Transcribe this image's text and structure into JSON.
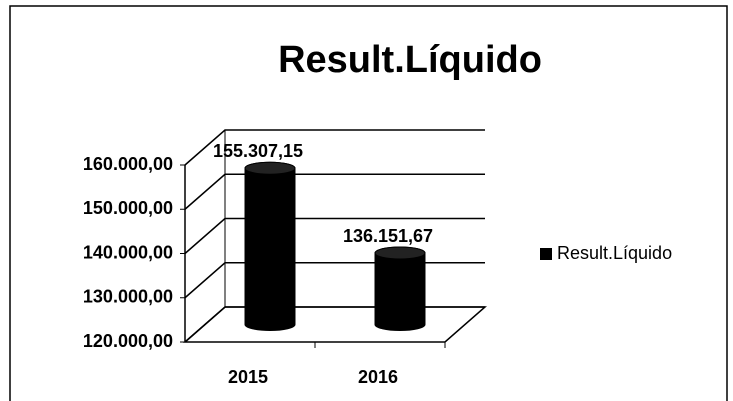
{
  "chart_data": {
    "type": "bar",
    "title": "Result.Líquido",
    "categories": [
      "2015",
      "2016"
    ],
    "series": [
      {
        "name": "Result.Líquido",
        "color": "#000000",
        "values": [
          155307.15,
          136151.67
        ],
        "value_labels": [
          "155.307,15",
          "136.151,67"
        ]
      }
    ],
    "ylim": [
      120000,
      160000
    ],
    "yticks": [
      {
        "value": 120000,
        "label": "120.000,00"
      },
      {
        "value": 130000,
        "label": "130.000,00"
      },
      {
        "value": 140000,
        "label": "140.000,00"
      },
      {
        "value": 150000,
        "label": "150.000,00"
      },
      {
        "value": 160000,
        "label": "160.000,00"
      }
    ],
    "grid": true,
    "legend": "right"
  }
}
